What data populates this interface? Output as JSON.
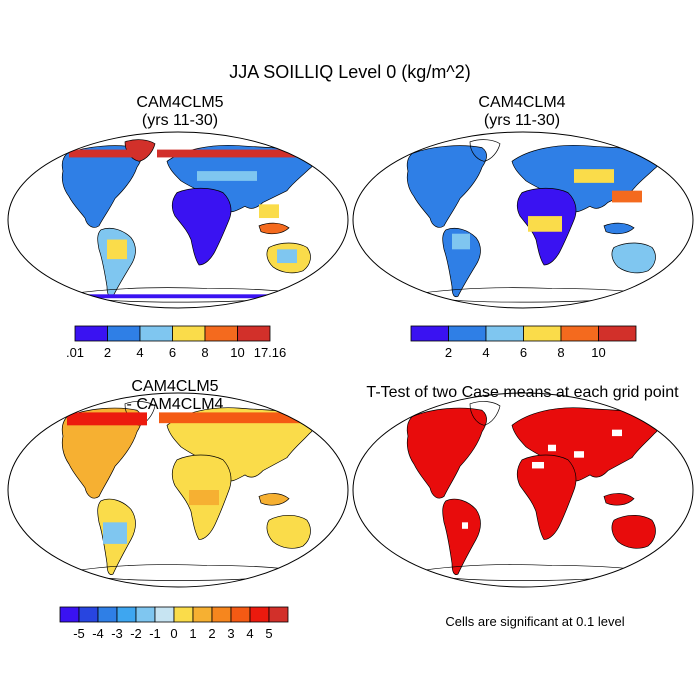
{
  "title": "JJA SOILLIQ Level 0 (kg/m^2)",
  "panels": {
    "top_left": {
      "line1": "CAM4CLM5",
      "line2": "(yrs 11-30)"
    },
    "top_right": {
      "line1": "CAM4CLM4",
      "line2": "(yrs 11-30)"
    },
    "bottom_left": {
      "line1": "CAM4CLM5",
      "line2": "- CAM4CLM4"
    },
    "bottom_right": {
      "line1": "T-Test of two Case means at each grid point"
    }
  },
  "significance_note": "Cells are significant at 0.1 level",
  "colorbars": {
    "absolute": {
      "colors": [
        "#3a12f2",
        "#2f7fe6",
        "#7fc6f0",
        "#fadc4a",
        "#f46a1e",
        "#d2302a"
      ],
      "labels_left": [
        ".01",
        "2",
        "4",
        "6",
        "8",
        "10",
        "17.16"
      ],
      "labels_right": [
        "2",
        "4",
        "6",
        "8",
        "10"
      ]
    },
    "difference": {
      "colors": [
        "#3a12f2",
        "#2845e0",
        "#2f7fe6",
        "#3ea6f0",
        "#7fc6f0",
        "#c7e4f2",
        "#fadc4a",
        "#f6b032",
        "#f6861e",
        "#f45a14",
        "#ec1a0e",
        "#d2302a"
      ],
      "labels": [
        "-5",
        "-4",
        "-3",
        "-2",
        "-1",
        "0",
        "1",
        "2",
        "3",
        "4",
        "5"
      ]
    },
    "significance_color": "#e80c0c"
  }
}
